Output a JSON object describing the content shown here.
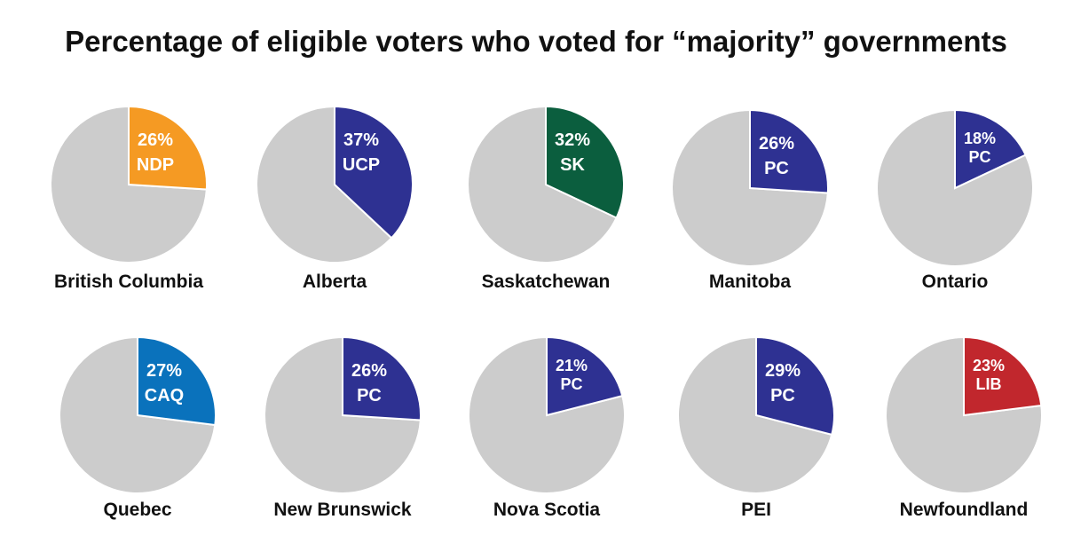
{
  "chart_data": {
    "type": "pie",
    "title": "Percentage of eligible voters who voted for “majority” governments",
    "remainder_color": "#cccccc",
    "charts": [
      {
        "province": "British Columbia",
        "value": 26,
        "value_label": "26%",
        "party": "NDP",
        "color": "#f59a23"
      },
      {
        "province": "Alberta",
        "value": 37,
        "value_label": "37%",
        "party": "UCP",
        "color": "#2e3192"
      },
      {
        "province": "Saskatchewan",
        "value": 32,
        "value_label": "32%",
        "party": "SK",
        "color": "#0b5e3e"
      },
      {
        "province": "Manitoba",
        "value": 26,
        "value_label": "26%",
        "party": "PC",
        "color": "#2e3192"
      },
      {
        "province": "Ontario",
        "value": 18,
        "value_label": "18%",
        "party": "PC",
        "color": "#2e3192"
      },
      {
        "province": "Quebec",
        "value": 27,
        "value_label": "27%",
        "party": "CAQ",
        "color": "#0a72bc"
      },
      {
        "province": "New Brunswick",
        "value": 26,
        "value_label": "26%",
        "party": "PC",
        "color": "#2e3192"
      },
      {
        "province": "Nova Scotia",
        "value": 21,
        "value_label": "21%",
        "party": "PC",
        "color": "#2e3192"
      },
      {
        "province": "PEI",
        "value": 29,
        "value_label": "29%",
        "party": "PC",
        "color": "#2e3192"
      },
      {
        "province": "Newfoundland",
        "value": 23,
        "value_label": "23%",
        "party": "LIB",
        "color": "#c1272d"
      }
    ]
  }
}
